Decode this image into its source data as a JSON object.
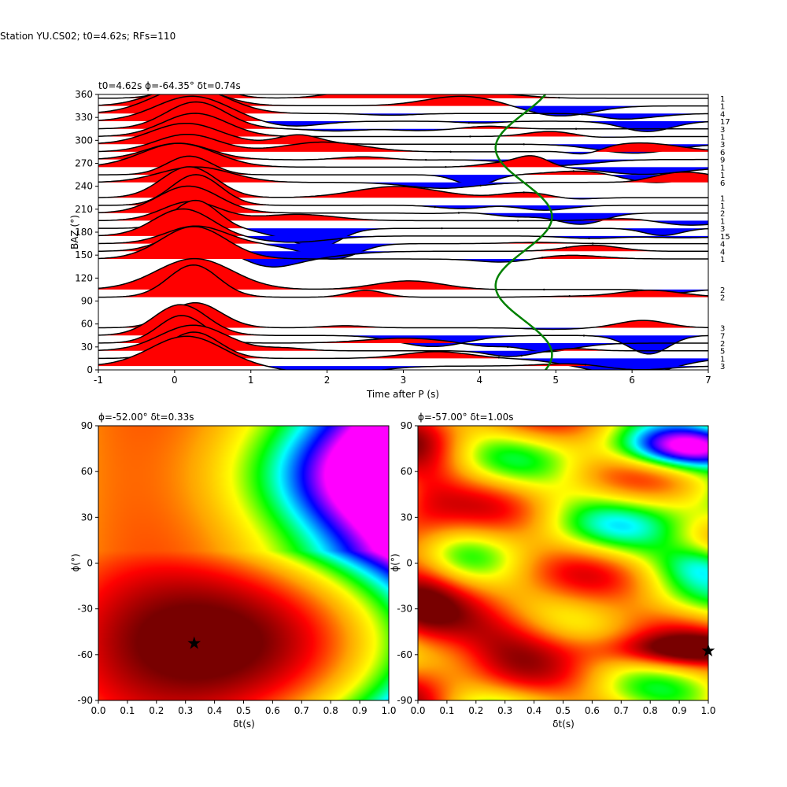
{
  "figure": {
    "suptitle": "Station YU.CS02; t0=4.62s; RFs=110"
  },
  "chart_data": [
    {
      "type": "line",
      "panel": "rf-traces",
      "title": "t0=4.62s ϕ=-64.35° δt=0.74s",
      "xlabel": "Time after P (s)",
      "ylabel": "BAZ (°)",
      "xlim": [
        -1,
        7
      ],
      "ylim": [
        0,
        360
      ],
      "xticks": [
        -1,
        0,
        1,
        2,
        3,
        4,
        5,
        6,
        7
      ],
      "yticks": [
        0,
        30,
        60,
        90,
        120,
        150,
        180,
        210,
        240,
        270,
        300,
        330,
        360
      ],
      "fill_positive": "#ff0000",
      "fill_negative": "#0000ff",
      "sine_color": "#008000",
      "baz": [
        5,
        15,
        25,
        35,
        45,
        55,
        95,
        105,
        145,
        155,
        165,
        175,
        185,
        195,
        205,
        215,
        225,
        245,
        255,
        265,
        275,
        285,
        295,
        305,
        315,
        325,
        335,
        345,
        355
      ],
      "counts": [
        "3",
        "1",
        "5",
        "2",
        "7",
        "3",
        "2",
        "2",
        "1",
        "4",
        "4",
        "15",
        "3",
        "1",
        "2",
        "1",
        "1",
        "6",
        "1",
        "1",
        "9",
        "6",
        "3",
        "1",
        "3",
        "17",
        "4",
        "1",
        "1"
      ]
    },
    {
      "type": "heatmap",
      "panel": "grid-search-left",
      "title": "ϕ=-52.00° δt=0.33s",
      "xlabel": "δt(s)",
      "ylabel": "ϕ(°)",
      "xlim": [
        0.0,
        1.0
      ],
      "ylim": [
        -90,
        90
      ],
      "xticks": [
        "0.0",
        "0.1",
        "0.2",
        "0.3",
        "0.4",
        "0.5",
        "0.6",
        "0.7",
        "0.8",
        "0.9",
        "1.0"
      ],
      "yticks": [
        -90,
        -60,
        -30,
        0,
        30,
        60,
        90
      ],
      "best": {
        "dt": 0.33,
        "phi": -52
      }
    },
    {
      "type": "heatmap",
      "panel": "grid-search-right",
      "title": "ϕ=-57.00° δt=1.00s",
      "xlabel": "δt(s)",
      "ylabel": "ϕ(°)",
      "xlim": [
        0.0,
        1.0
      ],
      "ylim": [
        -90,
        90
      ],
      "xticks": [
        "0.0",
        "0.1",
        "0.2",
        "0.3",
        "0.4",
        "0.5",
        "0.6",
        "0.7",
        "0.8",
        "0.9",
        "1.0"
      ],
      "yticks": [
        -90,
        -60,
        -30,
        0,
        30,
        60,
        90
      ],
      "best": {
        "dt": 1.0,
        "phi": -57
      }
    }
  ]
}
